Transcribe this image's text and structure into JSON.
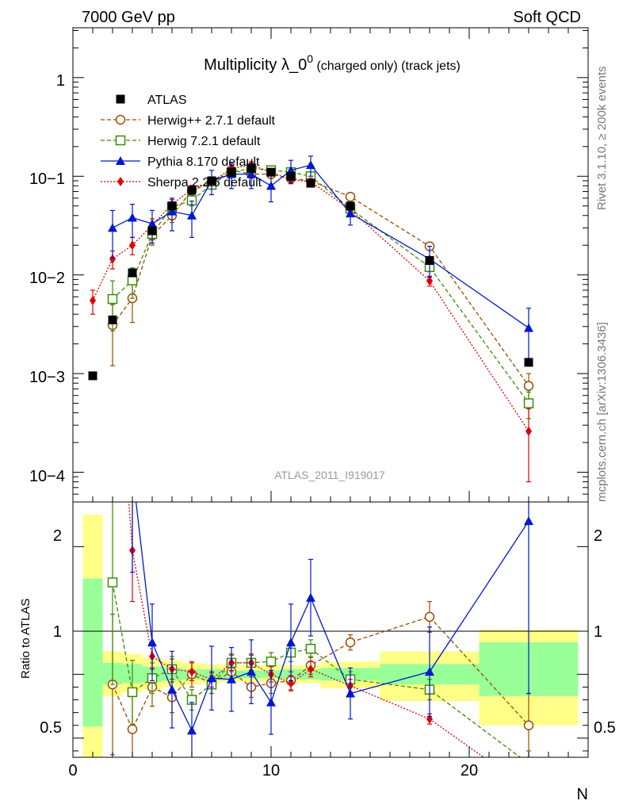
{
  "header": {
    "left": "7000 GeV pp",
    "right": "Soft QCD"
  },
  "side_labels": {
    "rivet": "Rivet 3.1.10, ≥ 200k events",
    "mcplots": "mcplots.cern.ch [arXiv:1306.3436]"
  },
  "chart_data": {
    "type": "scatter",
    "title_main": "Multiplicity λ_0",
    "title_sup": "0",
    "title_tail": " (charged only) (track jets)",
    "analysis_tag": "ATLAS_2011_I919017",
    "xlabel": "N",
    "ylabel_ratio": "Ratio to ATLAS",
    "xlim": [
      0,
      26
    ],
    "ylim_main": [
      5e-05,
      3.2
    ],
    "ylim_ratio": [
      0.35,
      2.35
    ],
    "x_tick_labels": [
      "0",
      "10",
      "20"
    ],
    "y_tick_labels_main": [
      "10−4",
      "10−3",
      "10−2",
      "10−1",
      "1"
    ],
    "y_tick_labels_ratio": [
      "0.5",
      "1",
      "2"
    ],
    "bands": [
      {
        "x0": 0.5,
        "x1": 1.5,
        "g": [
          0.59,
          1.75
        ],
        "y": [
          0.35,
          2.25
        ]
      },
      {
        "x0": 1.5,
        "x1": 2.5,
        "g": [
          0.92,
          1.09
        ],
        "y": [
          0.83,
          1.18
        ]
      },
      {
        "x0": 2.5,
        "x1": 3.5,
        "g": [
          0.93,
          1.08
        ],
        "y": [
          0.86,
          1.16
        ]
      },
      {
        "x0": 3.5,
        "x1": 4.5,
        "g": [
          0.94,
          1.06
        ],
        "y": [
          0.88,
          1.13
        ]
      },
      {
        "x0": 4.5,
        "x1": 5.5,
        "g": [
          0.95,
          1.05
        ],
        "y": [
          0.9,
          1.11
        ]
      },
      {
        "x0": 5.5,
        "x1": 6.5,
        "g": [
          0.96,
          1.04
        ],
        "y": [
          0.92,
          1.09
        ]
      },
      {
        "x0": 6.5,
        "x1": 7.5,
        "g": [
          0.96,
          1.04
        ],
        "y": [
          0.93,
          1.08
        ]
      },
      {
        "x0": 7.5,
        "x1": 8.5,
        "g": [
          0.97,
          1.03
        ],
        "y": [
          0.94,
          1.07
        ]
      },
      {
        "x0": 8.5,
        "x1": 9.5,
        "g": [
          0.97,
          1.03
        ],
        "y": [
          0.94,
          1.07
        ]
      },
      {
        "x0": 9.5,
        "x1": 10.5,
        "g": [
          0.97,
          1.03
        ],
        "y": [
          0.94,
          1.07
        ]
      },
      {
        "x0": 10.5,
        "x1": 11.5,
        "g": [
          0.96,
          1.04
        ],
        "y": [
          0.93,
          1.07
        ]
      },
      {
        "x0": 11.5,
        "x1": 12.5,
        "g": [
          0.96,
          1.04
        ],
        "y": [
          0.93,
          1.07
        ]
      },
      {
        "x0": 12.5,
        "x1": 15.5,
        "g": [
          0.95,
          1.05
        ],
        "y": [
          0.89,
          1.1
        ]
      },
      {
        "x0": 15.5,
        "x1": 20.5,
        "g": [
          0.92,
          1.08
        ],
        "y": [
          0.79,
          1.18
        ]
      },
      {
        "x0": 20.5,
        "x1": 25.5,
        "g": [
          0.83,
          1.25
        ],
        "y": [
          0.6,
          1.35
        ]
      }
    ],
    "series": [
      {
        "name": "ATLAS",
        "legend": "ATLAS",
        "color": "#000000",
        "marker": "square-filled",
        "line": "none",
        "x": [
          1,
          2,
          3,
          4,
          5,
          6,
          7,
          8,
          9,
          10,
          11,
          12,
          14,
          18,
          23
        ],
        "y": [
          0.00095,
          0.0035,
          0.0105,
          0.028,
          0.05,
          0.072,
          0.09,
          0.11,
          0.12,
          0.11,
          0.1,
          0.085,
          0.05,
          0.014,
          0.0013
        ],
        "err_lo": [
          0,
          0,
          0,
          0,
          0,
          0,
          0,
          0,
          0,
          0,
          0,
          0,
          0,
          0,
          0
        ],
        "err_hi": [
          0,
          0,
          0,
          0,
          0,
          0,
          0,
          0,
          0,
          0,
          0,
          0,
          0,
          0,
          0
        ],
        "ratio": [
          1,
          1,
          1,
          1,
          1,
          1,
          1,
          1,
          1,
          1,
          1,
          1,
          1,
          1,
          1
        ],
        "ratio_err_lo": [
          0,
          0,
          0,
          0,
          0,
          0,
          0,
          0,
          0,
          0,
          0,
          0,
          0,
          0,
          0
        ],
        "ratio_err_hi": [
          0,
          0,
          0,
          0,
          0,
          0,
          0,
          0,
          0,
          0,
          0,
          0,
          0,
          0,
          0
        ]
      },
      {
        "name": "Herwig++",
        "legend": "Herwig++ 2.7.1 default",
        "color": "#9b4c00",
        "marker": "circle-open",
        "line": "dashed",
        "x": [
          2,
          3,
          4,
          5,
          6,
          7,
          8,
          9,
          10,
          11,
          12,
          14,
          18,
          23
        ],
        "y": [
          0.0031,
          0.0058,
          0.025,
          0.04,
          0.072,
          0.085,
          0.115,
          0.105,
          0.105,
          0.095,
          0.09,
          0.062,
          0.0195,
          0.00075
        ],
        "err_lo": [
          0.0019,
          0.0025,
          0.005,
          0.006,
          0.008,
          0.008,
          0.01,
          0.01,
          0.01,
          0.008,
          0.008,
          0.005,
          0.0015,
          0.00025
        ],
        "err_hi": [
          0.0019,
          0.0025,
          0.005,
          0.006,
          0.008,
          0.008,
          0.01,
          0.01,
          0.01,
          0.008,
          0.008,
          0.005,
          0.0015,
          0.00025
        ],
        "ratio": [
          0.92,
          0.57,
          0.9,
          0.82,
          1.0,
          0.93,
          1.02,
          0.9,
          0.93,
          0.95,
          1.07,
          1.25,
          1.45,
          0.6
        ],
        "ratio_err_lo": [
          0.55,
          0.3,
          0.15,
          0.12,
          0.1,
          0.08,
          0.08,
          0.08,
          0.08,
          0.07,
          0.07,
          0.06,
          0.12,
          0.25
        ],
        "ratio_err_hi": [
          0.55,
          0.3,
          0.15,
          0.12,
          0.1,
          0.08,
          0.08,
          0.08,
          0.08,
          0.07,
          0.07,
          0.06,
          0.12,
          0.25
        ]
      },
      {
        "name": "Herwig 7",
        "legend": "Herwig 7.2.1 default",
        "color": "#3a8c00",
        "marker": "square-open",
        "line": "dashed",
        "x": [
          2,
          3,
          4,
          5,
          6,
          7,
          8,
          9,
          10,
          11,
          12,
          14,
          18,
          23
        ],
        "y": [
          0.0057,
          0.0088,
          0.026,
          0.049,
          0.057,
          0.082,
          0.11,
          0.12,
          0.115,
          0.11,
          0.1,
          0.047,
          0.012,
          0.0005
        ],
        "err_lo": [
          0.003,
          0.003,
          0.005,
          0.006,
          0.007,
          0.008,
          0.01,
          0.01,
          0.01,
          0.009,
          0.008,
          0.004,
          0.0012,
          0.00015
        ],
        "err_hi": [
          0.003,
          0.003,
          0.005,
          0.006,
          0.007,
          0.008,
          0.01,
          0.01,
          0.01,
          0.009,
          0.008,
          0.004,
          0.0012,
          0.00015
        ],
        "ratio": [
          1.72,
          0.86,
          0.97,
          1.04,
          0.8,
          0.92,
          1.09,
          1.09,
          1.1,
          1.17,
          1.2,
          0.96,
          0.88,
          0.3
        ],
        "ratio_err_lo": [
          0.8,
          0.25,
          0.12,
          0.1,
          0.08,
          0.07,
          0.07,
          0.07,
          0.07,
          0.07,
          0.07,
          0.06,
          0.08,
          0.1
        ],
        "ratio_err_hi": [
          0.8,
          0.25,
          0.12,
          0.1,
          0.08,
          0.07,
          0.07,
          0.07,
          0.07,
          0.07,
          0.07,
          0.06,
          0.08,
          0.1
        ]
      },
      {
        "name": "Pythia",
        "legend": "Pythia 8.170 default",
        "color": "#0018d0",
        "marker": "triangle-filled",
        "line": "solid",
        "x": [
          2,
          3,
          4,
          5,
          6,
          7,
          8,
          9,
          10,
          11,
          12,
          14,
          18,
          23
        ],
        "y": [
          0.03,
          0.038,
          0.033,
          0.044,
          0.04,
          0.09,
          0.105,
          0.105,
          0.08,
          0.115,
          0.13,
          0.042,
          0.0145,
          0.0029
        ],
        "err_lo": [
          0.015,
          0.014,
          0.012,
          0.016,
          0.016,
          0.025,
          0.03,
          0.03,
          0.025,
          0.03,
          0.03,
          0.01,
          0.005,
          0.0017
        ],
        "err_hi": [
          0.015,
          0.014,
          0.012,
          0.016,
          0.016,
          0.025,
          0.03,
          0.03,
          0.025,
          0.03,
          0.03,
          0.01,
          0.005,
          0.0017
        ],
        "ratio": [
          3.5,
          2.6,
          1.25,
          0.88,
          0.56,
          0.97,
          0.96,
          1.02,
          0.78,
          1.25,
          1.6,
          0.85,
          1.02,
          2.2
        ],
        "ratio_err_lo": [
          1.0,
          0.8,
          0.3,
          0.3,
          0.22,
          0.25,
          0.25,
          0.25,
          0.25,
          0.3,
          0.3,
          0.2,
          0.35,
          1.35
        ],
        "ratio_err_hi": [
          1.0,
          0.8,
          0.3,
          0.3,
          0.22,
          0.25,
          0.25,
          0.25,
          0.25,
          0.3,
          0.3,
          0.2,
          0.35,
          1.35
        ]
      },
      {
        "name": "Sherpa",
        "legend": "Sherpa 2.2.5 default",
        "color": "#e00000",
        "marker": "diamond-filled",
        "line": "dotted",
        "x": [
          1,
          2,
          3,
          4,
          5,
          6,
          7,
          8,
          9,
          10,
          11,
          12,
          14,
          18,
          23
        ],
        "y": [
          0.0055,
          0.0145,
          0.02,
          0.032,
          0.052,
          0.074,
          0.088,
          0.12,
          0.13,
          0.11,
          0.092,
          0.088,
          0.046,
          0.0087,
          0.00026
        ],
        "err_lo": [
          0.0015,
          0.003,
          0.004,
          0.005,
          0.006,
          0.007,
          0.008,
          0.01,
          0.01,
          0.009,
          0.008,
          0.007,
          0.004,
          0.001,
          0.00018
        ],
        "err_hi": [
          0.0015,
          0.003,
          0.004,
          0.005,
          0.006,
          0.007,
          0.008,
          0.01,
          0.01,
          0.009,
          0.008,
          0.007,
          0.004,
          0.001,
          0.00018
        ],
        "ratio": [
          5.8,
          4.1,
          1.97,
          1.14,
          1.04,
          1.02,
          0.96,
          1.09,
          1.09,
          1.0,
          0.93,
          1.04,
          0.91,
          0.65,
          0.1
        ],
        "ratio_err_lo": [
          1.5,
          0.9,
          0.4,
          0.1,
          0.08,
          0.07,
          0.06,
          0.06,
          0.06,
          0.06,
          0.06,
          0.06,
          0.05,
          0.04,
          0.05
        ],
        "ratio_err_hi": [
          1.5,
          0.9,
          0.4,
          0.1,
          0.08,
          0.07,
          0.06,
          0.06,
          0.06,
          0.06,
          0.06,
          0.06,
          0.05,
          0.04,
          0.05
        ]
      }
    ]
  }
}
